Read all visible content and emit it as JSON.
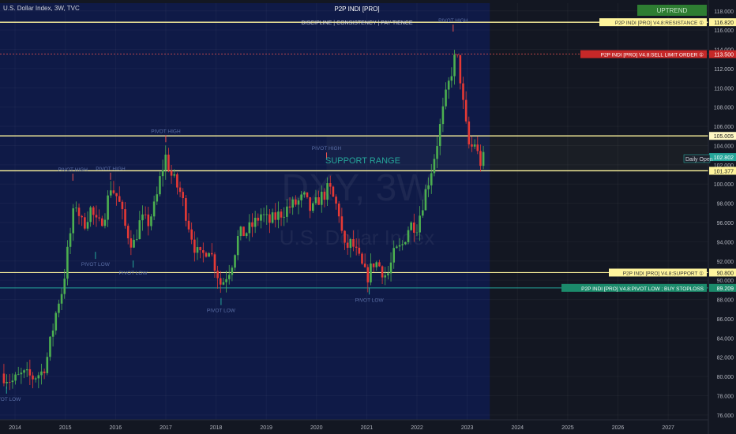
{
  "header": {
    "symbol_line": "U.S. Dollar Index, 3W, TVC",
    "indicator_title": "P2P INDI [PRO]",
    "motto": "DISCIPLINE  |  CONSISTENCY  |  PAY-TIENCE"
  },
  "watermark": {
    "ticker": "DXY, 3W",
    "name": "U.S. Dollar Index"
  },
  "trend_badge": "UPTREND",
  "support_range_label": "SUPPORT RANGE",
  "daily_open_label": "Daily Open",
  "pivot_labels": {
    "high": "PIVOT HIGH",
    "low": "PIVOT LOW"
  },
  "level_labels": {
    "resistance": "P2P INDI [PRO] V4.8:RESISTANCE ①",
    "sell_limit": "P2P INDI [PRO] V4.8:SELL LIMIT ORDER ①",
    "support": "P2P INDI [PRO] V4.8:SUPPORT ①",
    "pivot_low": "P2P INDI [PRO] V4.8:PIVOT LOW ; BUY STOPLOSS"
  },
  "price_tags": {
    "resistance": "116.820",
    "sell_limit": "113.500",
    "upper_level": "105.005",
    "current": "102.802",
    "support_band_top": "101.377",
    "support": "90.800",
    "pivot_low": "89.209"
  },
  "colors": {
    "background": "#131722",
    "highlight_zone": "#0f1a47",
    "bullish": "#26a69a",
    "bearish": "#ef5350",
    "bull_candle": "#4caf50",
    "bear_candle": "#e53935",
    "level_line": "#fff59d",
    "sell_line": "#ef5350",
    "stop_line": "#26a69a",
    "badge": "#2e7d32"
  },
  "chart_data": {
    "type": "candlestick",
    "title": "U.S. Dollar Index, 3W, TVC",
    "interval": "3W",
    "x_ticks": [
      "2014",
      "2015",
      "2016",
      "2017",
      "2018",
      "2019",
      "2020",
      "2021",
      "2022",
      "2023",
      "2024",
      "2025",
      "2026",
      "2027"
    ],
    "y_ticks": [
      "76.000",
      "78.000",
      "80.000",
      "82.000",
      "84.000",
      "86.000",
      "88.000",
      "90.000",
      "92.000",
      "94.000",
      "96.000",
      "98.000",
      "100.000",
      "102.000",
      "104.000",
      "106.000",
      "108.000",
      "110.000",
      "112.000",
      "114.000",
      "116.000",
      "118.000"
    ],
    "ylim": [
      75.5,
      118.8
    ],
    "xlim": [
      2013.7,
      2027.8
    ],
    "close_path": [
      [
        2013.72,
        80.3
      ],
      [
        2013.95,
        79.5
      ],
      [
        2014.15,
        80.2
      ],
      [
        2014.35,
        79.9
      ],
      [
        2014.55,
        80.5
      ],
      [
        2014.65,
        82.2
      ],
      [
        2014.75,
        84.9
      ],
      [
        2014.85,
        87.6
      ],
      [
        2014.95,
        89.2
      ],
      [
        2015.05,
        93.2
      ],
      [
        2015.2,
        98.2
      ],
      [
        2015.35,
        95.6
      ],
      [
        2015.5,
        97.4
      ],
      [
        2015.65,
        95.5
      ],
      [
        2015.8,
        97.2
      ],
      [
        2015.9,
        99.8
      ],
      [
        2016.05,
        98.5
      ],
      [
        2016.2,
        95.4
      ],
      [
        2016.35,
        93.6
      ],
      [
        2016.5,
        96.3
      ],
      [
        2016.65,
        96.0
      ],
      [
        2016.8,
        98.0
      ],
      [
        2016.9,
        101.0
      ],
      [
        2017.0,
        102.9
      ],
      [
        2017.1,
        101.0
      ],
      [
        2017.3,
        99.0
      ],
      [
        2017.45,
        95.9
      ],
      [
        2017.6,
        93.0
      ],
      [
        2017.7,
        92.3
      ],
      [
        2017.85,
        93.6
      ],
      [
        2017.95,
        92.0
      ],
      [
        2018.1,
        89.5
      ],
      [
        2018.3,
        91.5
      ],
      [
        2018.45,
        94.7
      ],
      [
        2018.6,
        95.0
      ],
      [
        2018.75,
        95.8
      ],
      [
        2018.9,
        96.9
      ],
      [
        2019.05,
        96.0
      ],
      [
        2019.3,
        97.0
      ],
      [
        2019.45,
        97.6
      ],
      [
        2019.6,
        98.0
      ],
      [
        2019.75,
        98.6
      ],
      [
        2019.9,
        97.1
      ],
      [
        2020.05,
        98.5
      ],
      [
        2020.15,
        98.9
      ],
      [
        2020.25,
        99.6
      ],
      [
        2020.45,
        97.0
      ],
      [
        2020.55,
        93.2
      ],
      [
        2020.7,
        93.9
      ],
      [
        2020.85,
        92.1
      ],
      [
        2021.0,
        90.2
      ],
      [
        2021.15,
        92.0
      ],
      [
        2021.25,
        91.5
      ],
      [
        2021.4,
        90.3
      ],
      [
        2021.55,
        92.8
      ],
      [
        2021.7,
        93.5
      ],
      [
        2021.85,
        95.8
      ],
      [
        2022.0,
        95.7
      ],
      [
        2022.15,
        98.8
      ],
      [
        2022.3,
        101.8
      ],
      [
        2022.4,
        104.3
      ],
      [
        2022.55,
        108.5
      ],
      [
        2022.7,
        112.0
      ],
      [
        2022.78,
        113.6
      ],
      [
        2022.85,
        111.5
      ],
      [
        2022.95,
        106.8
      ],
      [
        2023.05,
        103.5
      ],
      [
        2023.15,
        104.3
      ],
      [
        2023.25,
        102.2
      ],
      [
        2023.35,
        102.8
      ]
    ],
    "levels": [
      {
        "label": "P2P INDI [PRO] V4.8:RESISTANCE ①",
        "value": 116.82
      },
      {
        "label": "P2P INDI [PRO] V4.8:SELL LIMIT ORDER ①",
        "value": 113.5
      },
      {
        "value": 105.005
      },
      {
        "value": 101.377
      },
      {
        "label": "P2P INDI [PRO] V4.8:SUPPORT ①",
        "value": 90.8
      },
      {
        "label": "P2P INDI [PRO] V4.8:PIVOT LOW ; BUY STOPLOSS",
        "value": 89.209
      }
    ],
    "current_price": 102.802,
    "support_range": [
      101.377,
      105.005
    ],
    "pivot_highs": [
      {
        "x": 2015.15,
        "value": 101.0
      },
      {
        "x": 2015.9,
        "value": 101.1
      },
      {
        "x": 2017.0,
        "value": 105.0
      },
      {
        "x": 2020.2,
        "value": 103.2
      },
      {
        "x": 2022.72,
        "value": 116.5
      }
    ],
    "pivot_lows": [
      {
        "x": 2013.83,
        "value": 78.3
      },
      {
        "x": 2015.6,
        "value": 92.3
      },
      {
        "x": 2016.35,
        "value": 91.4
      },
      {
        "x": 2018.1,
        "value": 87.5
      },
      {
        "x": 2021.05,
        "value": 88.6
      }
    ],
    "highlight_x_range": [
      2013.7,
      2023.45
    ]
  }
}
